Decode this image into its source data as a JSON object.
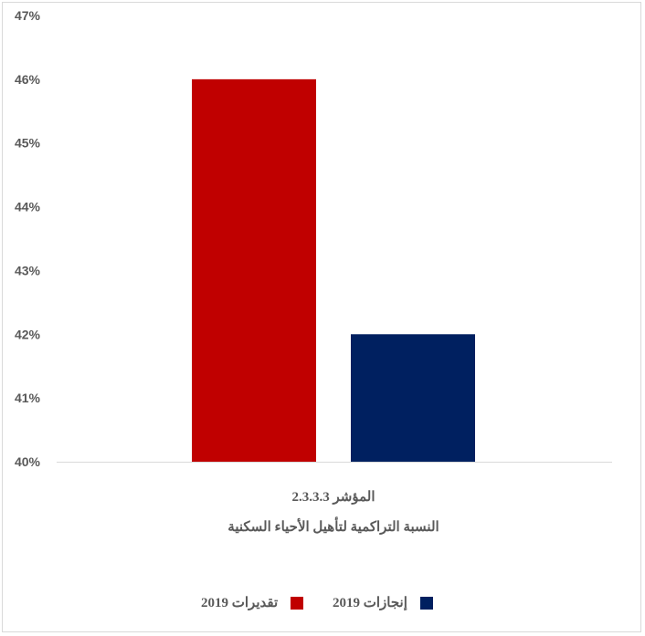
{
  "chart_data": {
    "type": "bar",
    "categories": [
      "المؤشر 2.3.3.3 النسبة التراكمية لتأهيل الأحياء السكنية"
    ],
    "category_lines": [
      "المؤشر 2.3.3.3",
      "النسبة التراكمية لتأهيل الأحياء السكنية"
    ],
    "series": [
      {
        "name": "تقديرات 2019",
        "values": [
          46
        ],
        "color": "#c00000"
      },
      {
        "name": "إنجازات 2019",
        "values": [
          42
        ],
        "color": "#002060"
      }
    ],
    "ylim": [
      40,
      47
    ],
    "yticks": [
      "40%",
      "41%",
      "42%",
      "43%",
      "44%",
      "45%",
      "46%",
      "47%"
    ],
    "ytick_values": [
      40,
      41,
      42,
      43,
      44,
      45,
      46,
      47
    ],
    "grid": false,
    "legend_position": "bottom",
    "title": "",
    "xlabel": "",
    "ylabel": ""
  }
}
